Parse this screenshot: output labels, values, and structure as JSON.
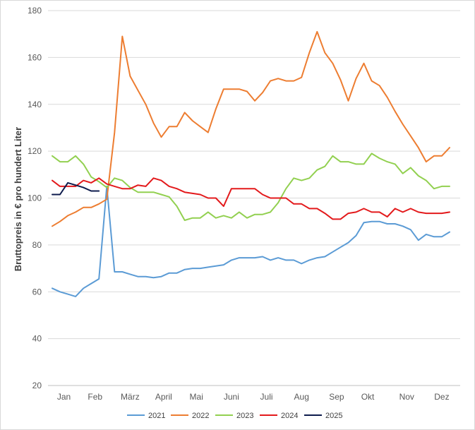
{
  "chart_data": {
    "type": "line",
    "title": "",
    "ylabel": "Bruttopreis in € pro hundert Liter",
    "xlabel": "",
    "ylim": [
      20,
      180
    ],
    "yticks": [
      20,
      40,
      60,
      80,
      100,
      120,
      140,
      160,
      180
    ],
    "months": [
      "Jan",
      "Feb",
      "März",
      "April",
      "Mai",
      "Juni",
      "Juli",
      "Aug",
      "Sep",
      "Okt",
      "Nov",
      "Dez"
    ],
    "week_range": [
      1,
      53
    ],
    "grid": "horizontal",
    "legend_position": "bottom",
    "series": [
      {
        "name": "2021",
        "color": "#5b9bd5",
        "values": [
          61.5,
          60,
          59,
          58,
          61.5,
          63.5,
          65.5,
          105,
          68.5,
          68.5,
          67.5,
          66.5,
          66.5,
          66,
          66.5,
          68,
          68,
          69.5,
          70,
          70,
          70.5,
          71,
          71.5,
          73.5,
          74.5,
          74.5,
          74.5,
          75,
          73.5,
          74.5,
          73.5,
          73.5,
          72,
          73.5,
          74.5,
          75,
          77,
          79,
          81,
          84,
          89.5,
          90,
          90,
          89,
          89,
          88,
          86.5,
          82,
          84.5,
          83.5,
          83.5,
          85.5
        ]
      },
      {
        "name": "2022",
        "color": "#ed7d31",
        "values": [
          88,
          90,
          92.5,
          94,
          96,
          96,
          97.5,
          99.5,
          128,
          169,
          152,
          146,
          140,
          132,
          126,
          130.5,
          130.5,
          136.5,
          133,
          130.5,
          128,
          138,
          146.5,
          146.5,
          146.5,
          145.5,
          141.5,
          145,
          150,
          151,
          150,
          150,
          151.5,
          162,
          171,
          162,
          157.5,
          150.5,
          141.5,
          151,
          157.5,
          150,
          148,
          143,
          137,
          131.5,
          126.5,
          121.5,
          115.5,
          118,
          118,
          121.5
        ]
      },
      {
        "name": "2023",
        "color": "#92d050",
        "values": [
          118,
          115.5,
          115.5,
          118,
          114.5,
          109,
          107,
          104.5,
          108.5,
          107.5,
          104.5,
          102.5,
          102.5,
          102.5,
          101.5,
          100.5,
          96.5,
          90.5,
          91.5,
          91.5,
          94,
          91.5,
          92.5,
          91.5,
          94,
          91.5,
          93,
          93,
          94,
          98,
          104,
          108.5,
          107.5,
          108.5,
          112,
          113.5,
          118,
          115.5,
          115.5,
          114.5,
          114.5,
          119,
          117,
          115.5,
          114.5,
          110.5,
          113,
          109.5,
          107.5,
          104,
          105,
          105
        ]
      },
      {
        "name": "2024",
        "color": "#e31a1c",
        "values": [
          107.5,
          105,
          105,
          105,
          107.5,
          106.5,
          108.5,
          106,
          105,
          104,
          104,
          105.5,
          105,
          108.5,
          107.5,
          105,
          104,
          102.5,
          102,
          101.5,
          100,
          100,
          96.5,
          104,
          104,
          104,
          104,
          101.5,
          100,
          100,
          100,
          97.5,
          97.5,
          95.5,
          95.5,
          93.5,
          91,
          91,
          93.5,
          94,
          95.5,
          94,
          94,
          92,
          95.5,
          94,
          95.5,
          94,
          93.5,
          93.5,
          93.5,
          94
        ]
      },
      {
        "name": "2025",
        "color": "#0d1b4c",
        "values": [
          101.5,
          101.5,
          106.5,
          105.5,
          104.5,
          103,
          103
        ]
      }
    ]
  }
}
